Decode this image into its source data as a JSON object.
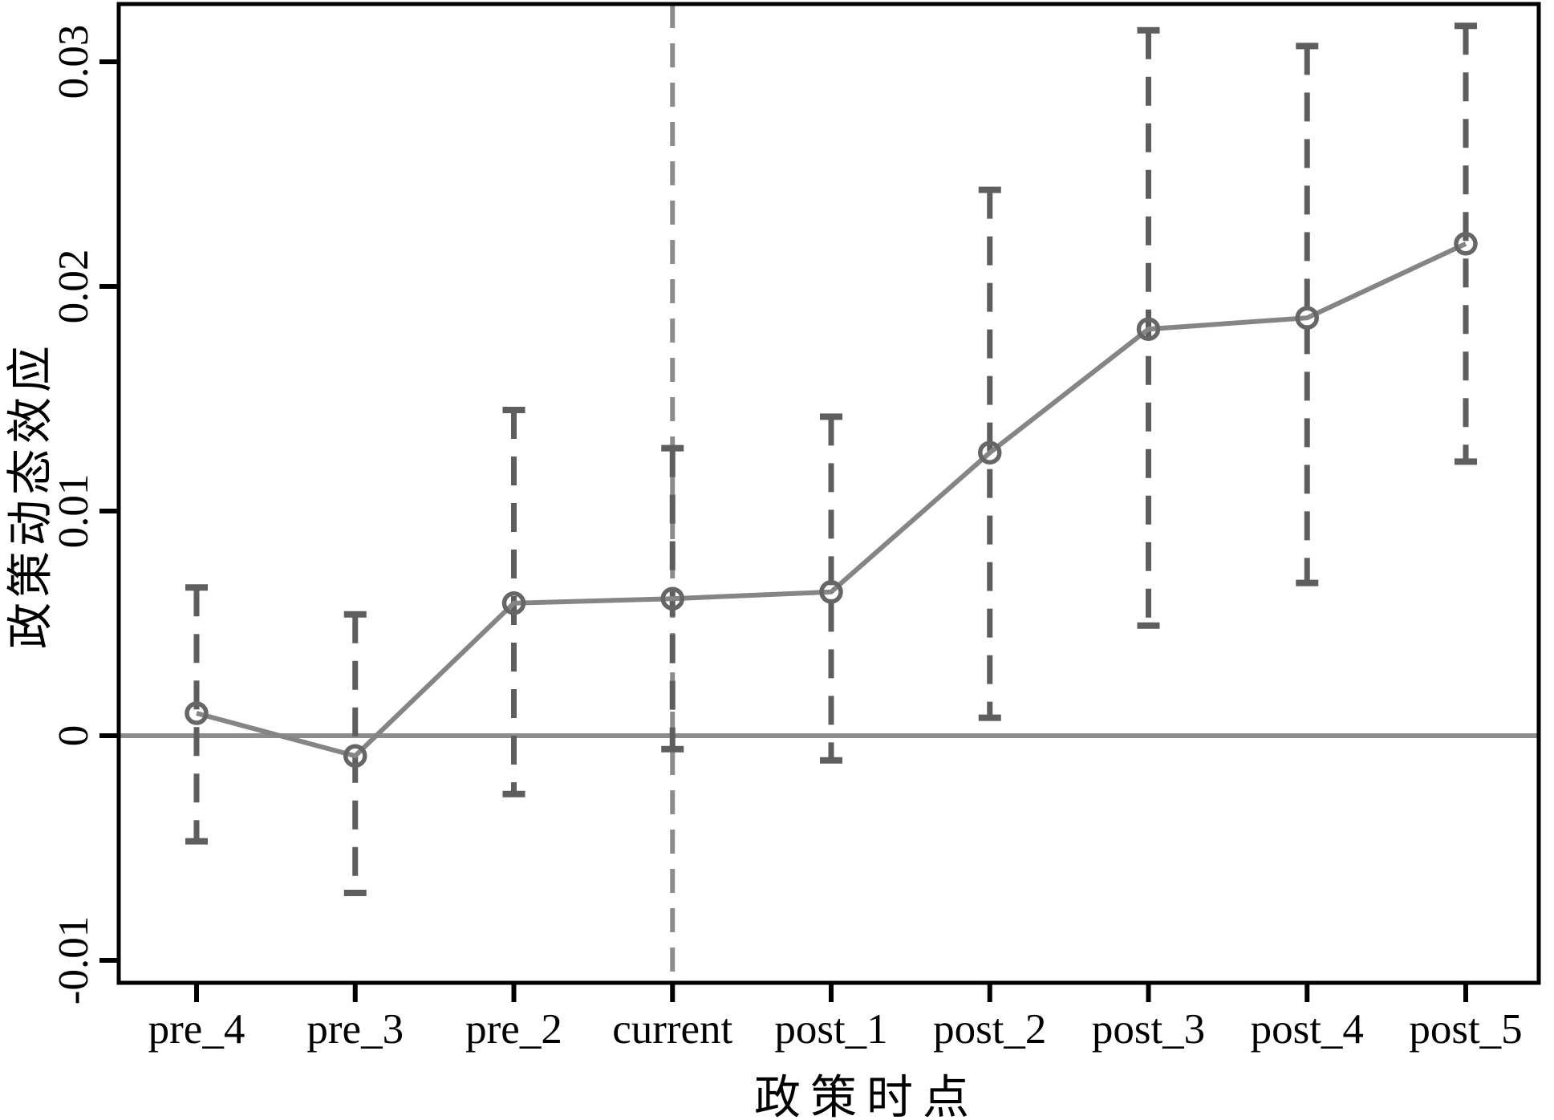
{
  "figure": {
    "background": "#ffffff"
  },
  "chart_data": {
    "type": "line",
    "title": "",
    "xlabel": "政策时点",
    "ylabel": "政策动态效应",
    "categories": [
      "pre_4",
      "pre_3",
      "pre_2",
      "current",
      "post_1",
      "post_2",
      "post_3",
      "post_4",
      "post_5"
    ],
    "series": [
      {
        "name": "政策动态效应",
        "values": [
          0.001,
          -0.0009,
          0.0059,
          0.0061,
          0.0064,
          0.0126,
          0.0181,
          0.0186,
          0.0219
        ],
        "ci_low": [
          -0.0047,
          -0.007,
          -0.0026,
          -0.0006,
          -0.0011,
          0.0008,
          0.0049,
          0.0068,
          0.0122
        ],
        "ci_high": [
          0.0066,
          0.0054,
          0.0145,
          0.0128,
          0.0142,
          0.0243,
          0.0314,
          0.0307,
          0.0316
        ]
      }
    ],
    "ytick_labels": [
      "0.03",
      "0.02",
      "0.01",
      "0",
      "-0.01"
    ],
    "ytick_values": [
      0.03,
      0.02,
      0.01,
      0,
      -0.01
    ],
    "ylim": [
      -0.0111,
      0.0326
    ],
    "grid": false,
    "legend_position": "none",
    "reference": {
      "zero_line_y": 0,
      "vline_at_category": "current"
    },
    "marker_style": "open-circle",
    "ci_style": "dashed-with-caps",
    "colors": {
      "line": "#858585",
      "marker": "#666666",
      "whisker": "#5e5e5e",
      "zero_line": "#8c8c8c",
      "reference_line": "#8c8c8c",
      "axis": "#000000",
      "text": "#000000"
    }
  }
}
